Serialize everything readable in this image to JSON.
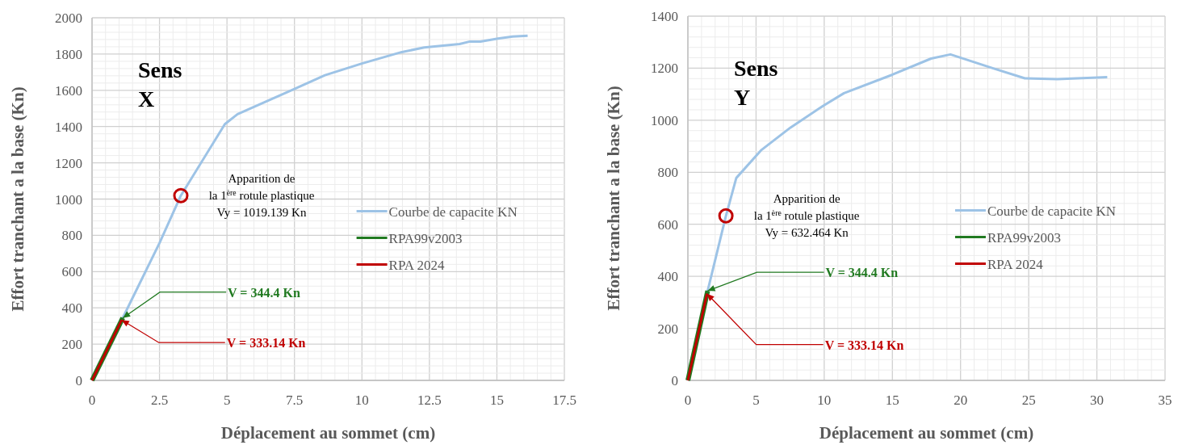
{
  "chart_data": [
    {
      "type": "line",
      "title": "Sens X",
      "xlabel": "Déplacement au sommet (cm)",
      "ylabel": "Effort tranchant a la base (Kn)",
      "xlim": [
        0,
        17.5
      ],
      "xticks": [
        0,
        2.5,
        5,
        7.5,
        10,
        12.5,
        15,
        17.5
      ],
      "ylim": [
        0,
        2000
      ],
      "yticks": [
        0,
        200,
        400,
        600,
        800,
        1000,
        1200,
        1400,
        1600,
        1800,
        2000
      ],
      "grid": true,
      "legend": "right",
      "series": [
        {
          "name": "Courbe de capacite KN",
          "color": "#9dc3e6",
          "x": [
            0,
            1.1,
            2.5,
            3.29,
            4.92,
            5.39,
            7.5,
            8.63,
            10,
            11.48,
            12.31,
            13.62,
            14,
            14.39,
            15.04,
            15.58,
            16.14
          ],
          "values": [
            0,
            333,
            758,
            1019,
            1413,
            1468,
            1607,
            1683,
            1748,
            1811,
            1836,
            1855,
            1869,
            1869,
            1885,
            1896,
            1901
          ]
        },
        {
          "name": "RPA99v2003",
          "color": "#217a21",
          "x": [
            0,
            1.14
          ],
          "values": [
            0,
            344.4
          ]
        },
        {
          "name": "RPA 2024",
          "color": "#c00000",
          "x": [
            0,
            1.1
          ],
          "values": [
            0,
            333.14
          ]
        },
        {
          "type": "scatter",
          "marker": "circle",
          "color": "#c00000",
          "x": [
            3.29
          ],
          "values": [
            1019.139
          ]
        }
      ],
      "annotations": [
        {
          "text": "Apparition de\nla 1$^{ère}$ rotule plastique\nVy = 1019.139 Kn",
          "x": 3.29,
          "y": 1019.139
        },
        {
          "text": "V = 344.4 Kn",
          "x": 1.14,
          "y": 344.4
        },
        {
          "text": "V = 333.14 Kn",
          "x": 1.1,
          "y": 333.14
        }
      ]
    },
    {
      "type": "line",
      "title": "Sens Y",
      "xlabel": "Déplacement au sommet (cm)",
      "ylabel": "Effort tranchant a la base (Kn)",
      "xlim": [
        0,
        35
      ],
      "xticks": [
        0,
        5,
        10,
        15,
        20,
        25,
        30,
        35
      ],
      "ylim": [
        0,
        1400
      ],
      "yticks": [
        0,
        200,
        400,
        600,
        800,
        1000,
        1200,
        1400
      ],
      "grid": true,
      "legend": "right",
      "series": [
        {
          "name": "Courbe de capacite KN",
          "color": "#9dc3e6",
          "x": [
            0,
            1.4,
            2.79,
            3.55,
            5.4,
            7.53,
            10,
            11.45,
            15,
            17.84,
            19.26,
            22.35,
            24.72,
            27.1,
            30.76
          ],
          "values": [
            0,
            333,
            632,
            778,
            886,
            972,
            1058,
            1104,
            1175,
            1237,
            1253,
            1200,
            1161,
            1158,
            1166
          ]
        },
        {
          "name": "RPA99v2003",
          "color": "#217a21",
          "x": [
            0,
            1.45
          ],
          "values": [
            0,
            344.4
          ]
        },
        {
          "name": "RPA 2024",
          "color": "#c00000",
          "x": [
            0,
            1.4
          ],
          "values": [
            0,
            333.14
          ]
        },
        {
          "type": "scatter",
          "marker": "circle",
          "color": "#c00000",
          "x": [
            2.79
          ],
          "values": [
            632.464
          ]
        }
      ],
      "annotations": [
        {
          "text": "Apparition de\nla 1$^{ère}$ rotule plastique\nVy = 632.464 Kn",
          "x": 2.79,
          "y": 632.464
        },
        {
          "text": "V = 344.4 Kn",
          "x": 1.45,
          "y": 344.4
        },
        {
          "text": "V = 333.14 Kn",
          "x": 1.4,
          "y": 333.14
        }
      ]
    }
  ]
}
